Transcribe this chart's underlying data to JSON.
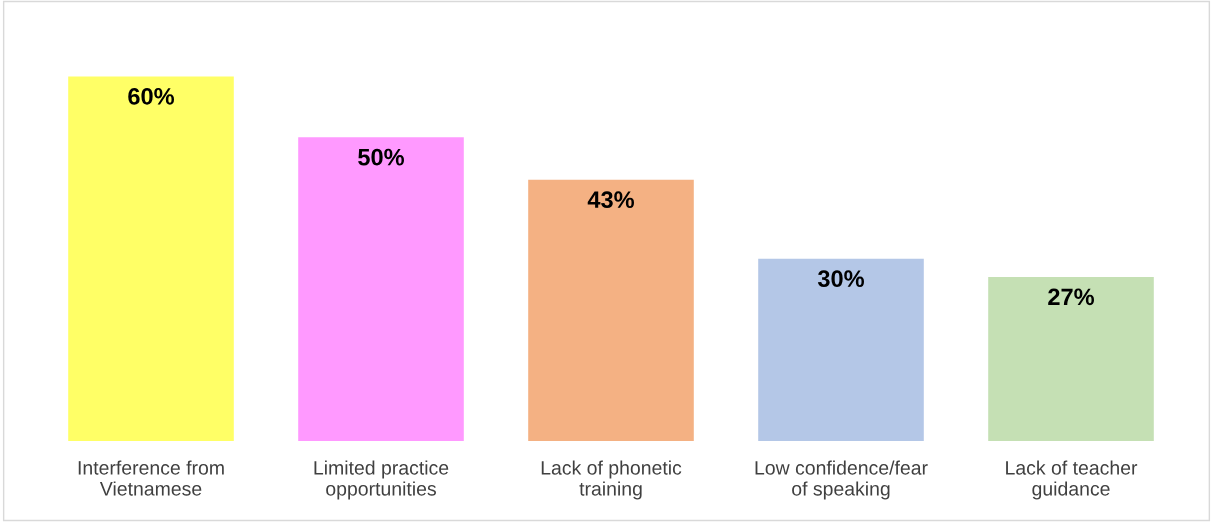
{
  "chart_data": {
    "type": "bar",
    "categories": [
      "Interference from Vietnamese",
      "Limited practice opportunities",
      "Lack of phonetic training",
      "Low confidence/fear of speaking",
      "Lack of teacher guidance"
    ],
    "values": [
      60,
      50,
      43,
      30,
      27
    ],
    "colors": [
      "#ffff66",
      "#ff99ff",
      "#f4b183",
      "#b4c7e7",
      "#c5e0b4"
    ],
    "value_labels": [
      "60%",
      "50%",
      "43%",
      "30%",
      "27%"
    ],
    "grid": false,
    "legend": false
  }
}
